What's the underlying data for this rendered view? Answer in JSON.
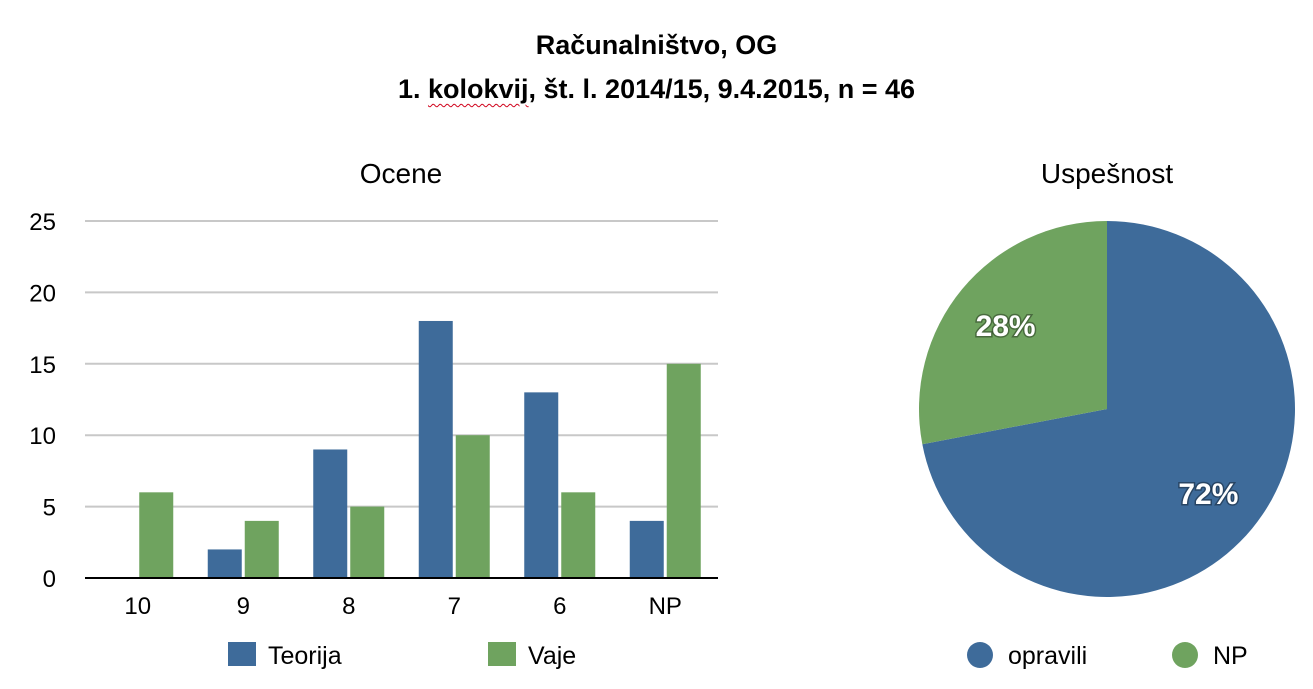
{
  "title": {
    "line1": "Računalništvo, OG",
    "line2_num": "1.",
    "line2_word": "kolokvij",
    "line2_rest": ", št. l. 2014/15, 9.4.2015, n = 46"
  },
  "colors": {
    "blue": "#3e6b9a",
    "green": "#6fa35f",
    "grid": "#c8c8c8",
    "axis": "#000000"
  },
  "chart_data": [
    {
      "type": "bar",
      "title": "Ocene",
      "categories": [
        "10",
        "9",
        "8",
        "7",
        "6",
        "NP"
      ],
      "series": [
        {
          "name": "Teorija",
          "values": [
            0,
            2,
            9,
            18,
            13,
            4
          ],
          "color": "#3e6b9a"
        },
        {
          "name": "Vaje",
          "values": [
            6,
            4,
            5,
            10,
            6,
            15
          ],
          "color": "#6fa35f"
        }
      ],
      "ylim": [
        0,
        25
      ],
      "yticks": [
        0,
        5,
        10,
        15,
        20,
        25
      ],
      "grid": true,
      "legend": "bottom"
    },
    {
      "type": "pie",
      "title": "Uspešnost",
      "slices": [
        {
          "name": "opravili",
          "value": 72,
          "label": "72%",
          "color": "#3e6b9a"
        },
        {
          "name": "NP",
          "value": 28,
          "label": "28%",
          "color": "#6fa35f"
        }
      ],
      "legend": "bottom"
    }
  ]
}
